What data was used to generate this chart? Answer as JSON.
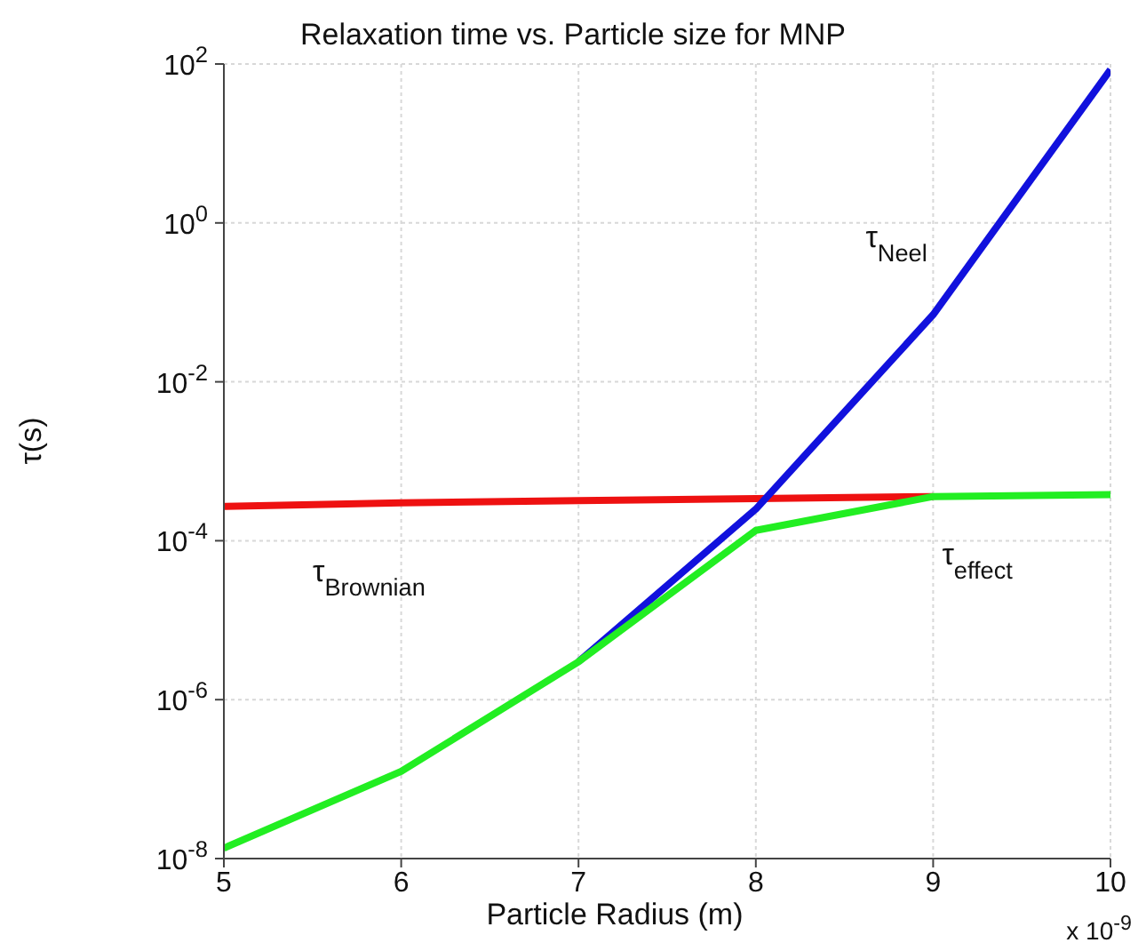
{
  "chart_data": {
    "type": "line",
    "title": "Relaxation time vs. Particle size for MNP",
    "xlabel": "Particle Radius (m)",
    "ylabel": "τ(s)",
    "annotations": [
      "x 10$^{-9}$"
    ],
    "x": [
      5,
      6,
      7,
      8,
      9,
      10
    ],
    "series": [
      {
        "name": "τ$_{Brownian}$",
        "color": "#ee1111",
        "values": [
          0.00027,
          0.0003,
          0.00032,
          0.00034,
          0.00036,
          null
        ]
      },
      {
        "name": "τ$_{Neel}$",
        "color": "#1111dd",
        "values": [
          null,
          null,
          3e-06,
          0.00025,
          0.07,
          85
        ]
      },
      {
        "name": "τ$_{effect}$",
        "color": "#22ee22",
        "values": [
          1.35e-08,
          1.25e-07,
          3e-06,
          0.000135,
          0.00036,
          0.00038
        ]
      }
    ],
    "log": "y",
    "xlim": [
      5,
      10
    ],
    "xticks": [
      5,
      6,
      7,
      8,
      9,
      10
    ],
    "ylim": [
      1e-08,
      100
    ],
    "yticks": [
      {
        "value": 1e-08,
        "label": "10$^{-8}$"
      },
      {
        "value": 1e-06,
        "label": "10$^{-6}$"
      },
      {
        "value": 0.0001,
        "label": "10$^{-4}$"
      },
      {
        "value": 0.01,
        "label": "10$^{-2}$"
      },
      {
        "value": 1,
        "label": "10$^{0}$"
      },
      {
        "value": 100,
        "label": "10$^{2}$"
      }
    ],
    "grid": true,
    "legend": false,
    "marker": "none",
    "line_style": "solid"
  }
}
